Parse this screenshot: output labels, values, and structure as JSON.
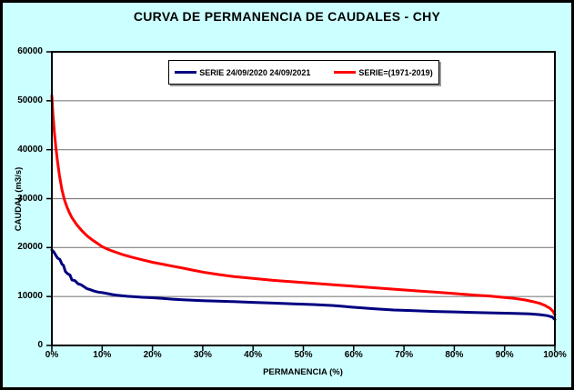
{
  "window": {
    "background_color": "#CCFFFF",
    "plot_background_color": "#FFFFFF",
    "gridline_color": "#808080",
    "axis_color": "#000000"
  },
  "chart_data": {
    "type": "line",
    "title": "CURVA DE PERMANENCIA DE CAUDALES - CHY",
    "xlabel": "PERMANENCIA (%)",
    "ylabel": "CAUDAL (m3/s)",
    "xlim": [
      0,
      100
    ],
    "ylim": [
      0,
      60000
    ],
    "xtick_labels": [
      "0%",
      "10%",
      "20%",
      "30%",
      "40%",
      "50%",
      "60%",
      "70%",
      "80%",
      "90%",
      "100%"
    ],
    "ytick_values": [
      0,
      10000,
      20000,
      30000,
      40000,
      50000,
      60000
    ],
    "ytick_labels": [
      "0",
      "10000",
      "20000",
      "30000",
      "40000",
      "50000",
      "60000"
    ],
    "grid": "horizontal",
    "legend_position": "top-center-inside",
    "series": [
      {
        "name": "SERIE 24/09/2020 24/09/2021",
        "color": "#000080",
        "x": [
          0,
          0.4,
          0.8,
          1.2,
          1.6,
          2.0,
          2.3,
          2.7,
          3.2,
          3.6,
          4.0,
          4.6,
          5.2,
          5.8,
          6.4,
          7.0,
          7.6,
          8.4,
          9.2,
          10,
          11,
          12,
          13,
          14,
          15,
          16,
          18,
          20,
          22,
          24,
          26,
          28,
          30,
          33,
          36,
          40,
          44,
          48,
          52,
          56,
          60,
          64,
          68,
          72,
          76,
          80,
          84,
          88,
          92,
          95,
          97,
          98.5,
          99.5,
          100
        ],
        "y": [
          19500,
          19100,
          18400,
          17800,
          17600,
          16600,
          16400,
          15100,
          14600,
          14400,
          13400,
          13250,
          12600,
          12400,
          12000,
          11600,
          11400,
          11100,
          10900,
          10800,
          10600,
          10400,
          10250,
          10150,
          10050,
          10000,
          9850,
          9750,
          9600,
          9450,
          9350,
          9250,
          9150,
          9050,
          8950,
          8800,
          8650,
          8500,
          8350,
          8150,
          7800,
          7500,
          7250,
          7100,
          6950,
          6850,
          6750,
          6650,
          6550,
          6450,
          6300,
          6100,
          5800,
          5300
        ]
      },
      {
        "name": "SERIE=(1971-2019)",
        "color": "#FF0000",
        "x": [
          0,
          0.2,
          0.5,
          0.8,
          1.1,
          1.5,
          2.0,
          2.5,
          3.0,
          3.5,
          4.0,
          5.0,
          6.0,
          7.0,
          8.0,
          9.0,
          10,
          11,
          12,
          14,
          16,
          18,
          20,
          22,
          24,
          26,
          28,
          30,
          33,
          36,
          40,
          44,
          48,
          52,
          56,
          60,
          64,
          68,
          72,
          76,
          80,
          84,
          87,
          90,
          92,
          94,
          95.5,
          97,
          98,
          99,
          99.6,
          100
        ],
        "y": [
          51000,
          47500,
          43500,
          40500,
          37800,
          34800,
          31800,
          29800,
          28300,
          27100,
          26100,
          24600,
          23400,
          22400,
          21600,
          20900,
          20200,
          19700,
          19300,
          18600,
          18000,
          17500,
          17000,
          16600,
          16200,
          15800,
          15400,
          15000,
          14500,
          14100,
          13700,
          13300,
          13000,
          12700,
          12400,
          12100,
          11800,
          11500,
          11200,
          10900,
          10600,
          10300,
          10100,
          9800,
          9600,
          9300,
          9000,
          8600,
          8200,
          7600,
          7000,
          6300
        ]
      }
    ]
  }
}
